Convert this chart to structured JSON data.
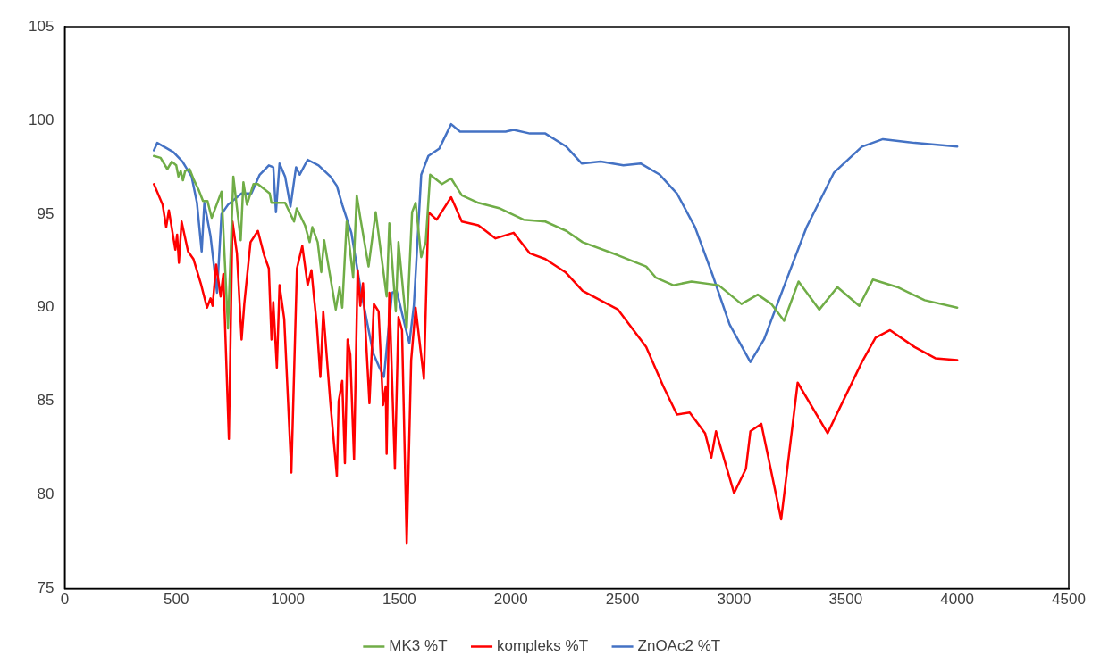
{
  "chart_data": {
    "type": "line",
    "xlim": [
      0,
      4500
    ],
    "xticks": [
      0,
      500,
      1000,
      1500,
      2000,
      2500,
      3000,
      3500,
      4000,
      4500
    ],
    "ylim": [
      75,
      105
    ],
    "yticks": [
      75,
      80,
      85,
      90,
      95,
      100,
      105
    ],
    "grid": false,
    "legend": "bottom",
    "marker": "none",
    "line_style": "solid",
    "series": [
      {
        "name": "MK3 %T",
        "color": "#70ad47",
        "x": [
          400,
          430,
          460,
          480,
          500,
          510,
          520,
          530,
          540,
          560,
          580,
          600,
          620,
          640,
          659,
          703,
          732,
          756,
          789,
          801,
          817,
          846,
          866,
          919,
          927,
          988,
          1028,
          1040,
          1077,
          1098,
          1110,
          1134,
          1150,
          1163,
          1215,
          1232,
          1244,
          1264,
          1293,
          1309,
          1325,
          1362,
          1394,
          1443,
          1455,
          1484,
          1496,
          1533,
          1557,
          1573,
          1598,
          1618,
          1638,
          1691,
          1732,
          1780,
          1854,
          1951,
          2057,
          2154,
          2248,
          2321,
          2480,
          2606,
          2650,
          2728,
          2809,
          2931,
          3033,
          3106,
          3167,
          3224,
          3289,
          3382,
          3463,
          3561,
          3622,
          3732,
          3854,
          4000
        ],
        "values": [
          98.1,
          98.0,
          97.4,
          97.8,
          97.6,
          97.0,
          97.3,
          96.8,
          97.3,
          97.4,
          96.8,
          96.3,
          95.7,
          95.7,
          94.8,
          96.2,
          88.9,
          97.0,
          93.6,
          96.7,
          95.5,
          96.6,
          96.6,
          96.1,
          95.6,
          95.6,
          94.6,
          95.3,
          94.4,
          93.5,
          94.3,
          93.5,
          91.9,
          93.6,
          89.9,
          91.1,
          90.0,
          94.6,
          91.6,
          96.0,
          94.8,
          92.2,
          95.1,
          90.6,
          94.5,
          89.8,
          93.5,
          88.9,
          95.1,
          95.6,
          92.7,
          93.5,
          97.1,
          96.6,
          96.9,
          96.0,
          95.6,
          95.3,
          94.7,
          94.6,
          94.1,
          93.5,
          92.8,
          92.2,
          91.6,
          91.2,
          91.4,
          91.2,
          90.2,
          90.7,
          90.2,
          89.3,
          91.4,
          89.9,
          91.1,
          90.1,
          91.5,
          91.1,
          90.4,
          90.0
        ]
      },
      {
        "name": "kompleks %T",
        "color": "#ff0000",
        "x": [
          400,
          439,
          455,
          467,
          496,
          504,
          512,
          524,
          553,
          577,
          610,
          638,
          654,
          663,
          679,
          699,
          711,
          736,
          752,
          772,
          793,
          805,
          833,
          866,
          894,
          915,
          927,
          935,
          951,
          963,
          984,
          1016,
          1041,
          1065,
          1089,
          1106,
          1118,
          1130,
          1146,
          1159,
          1191,
          1220,
          1228,
          1244,
          1256,
          1268,
          1280,
          1297,
          1313,
          1325,
          1337,
          1366,
          1386,
          1407,
          1427,
          1439,
          1443,
          1455,
          1480,
          1496,
          1512,
          1533,
          1553,
          1573,
          1610,
          1630,
          1667,
          1732,
          1780,
          1854,
          1931,
          2012,
          2085,
          2154,
          2244,
          2321,
          2480,
          2606,
          2683,
          2744,
          2801,
          2870,
          2898,
          2919,
          3000,
          3053,
          3073,
          3122,
          3211,
          3285,
          3419,
          3573,
          3634,
          3699,
          3809,
          3902,
          4000
        ],
        "values": [
          96.6,
          95.5,
          94.3,
          95.2,
          93.1,
          93.9,
          92.4,
          94.6,
          93.0,
          92.6,
          91.3,
          90.0,
          90.5,
          90.1,
          92.3,
          90.6,
          91.8,
          83.0,
          94.6,
          92.9,
          88.3,
          90.2,
          93.5,
          94.1,
          92.8,
          92.1,
          88.3,
          90.3,
          86.8,
          91.2,
          89.4,
          81.2,
          92.1,
          93.3,
          91.2,
          92.0,
          90.5,
          89.1,
          86.3,
          89.8,
          84.9,
          81.0,
          85.0,
          86.1,
          81.7,
          88.3,
          87.5,
          81.9,
          92.0,
          90.1,
          91.3,
          84.9,
          90.2,
          89.8,
          84.8,
          85.8,
          82.2,
          90.8,
          81.4,
          89.5,
          88.8,
          77.4,
          87.2,
          90.0,
          86.2,
          95.1,
          94.7,
          95.9,
          94.6,
          94.4,
          93.7,
          94.0,
          92.9,
          92.6,
          91.9,
          90.9,
          89.9,
          87.9,
          85.8,
          84.3,
          84.4,
          83.3,
          82.0,
          83.4,
          80.1,
          81.4,
          83.4,
          83.8,
          78.7,
          86.0,
          83.3,
          87.1,
          88.4,
          88.8,
          87.9,
          87.3,
          87.2
        ]
      },
      {
        "name": "ZnOAc2 %T",
        "color": "#4472c4",
        "x": [
          400,
          415,
          459,
          488,
          528,
          569,
          593,
          614,
          626,
          654,
          683,
          703,
          732,
          793,
          837,
          874,
          915,
          935,
          947,
          963,
          988,
          1012,
          1037,
          1053,
          1089,
          1138,
          1191,
          1220,
          1244,
          1285,
          1325,
          1382,
          1407,
          1431,
          1467,
          1488,
          1524,
          1545,
          1565,
          1598,
          1630,
          1679,
          1732,
          1772,
          1882,
          1976,
          2012,
          2085,
          2154,
          2248,
          2317,
          2402,
          2504,
          2581,
          2667,
          2744,
          2825,
          2902,
          2980,
          3073,
          3134,
          3232,
          3325,
          3447,
          3573,
          3667,
          3809,
          4000
        ],
        "values": [
          98.4,
          98.8,
          98.5,
          98.3,
          97.8,
          97.0,
          95.6,
          93.0,
          95.6,
          93.8,
          90.8,
          95.0,
          95.5,
          96.1,
          96.1,
          97.1,
          97.6,
          97.5,
          95.1,
          97.7,
          97.0,
          95.4,
          97.5,
          97.1,
          97.9,
          97.6,
          97.0,
          96.5,
          95.5,
          94.0,
          91.1,
          87.6,
          86.9,
          86.3,
          90.8,
          90.9,
          89.1,
          88.1,
          90.1,
          97.1,
          98.1,
          98.5,
          99.8,
          99.4,
          99.4,
          99.4,
          99.5,
          99.3,
          99.3,
          98.6,
          97.7,
          97.8,
          97.6,
          97.7,
          97.1,
          96.1,
          94.3,
          91.8,
          89.1,
          87.1,
          88.3,
          91.4,
          94.3,
          97.2,
          98.6,
          99.0,
          98.8,
          98.6
        ]
      }
    ]
  }
}
